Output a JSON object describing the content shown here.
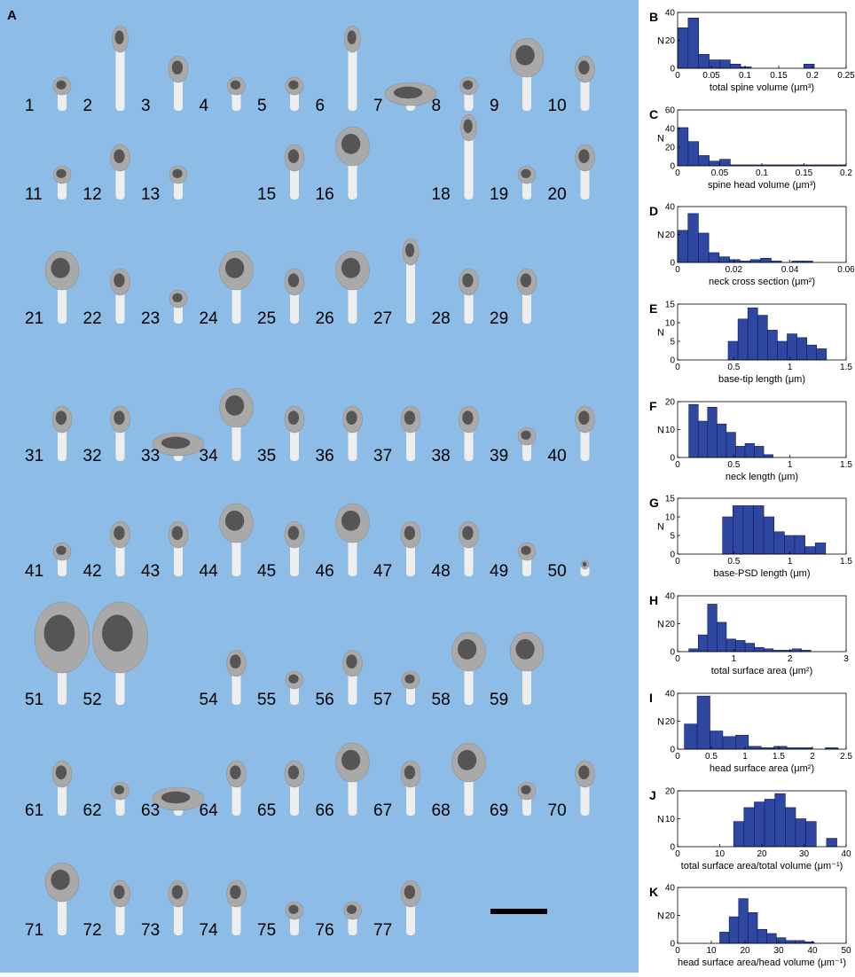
{
  "colors": {
    "panel_bg": "#8dbde6",
    "spine": "#a9a9a9",
    "neck": "#eeeeee",
    "psd": "#555555",
    "bar": "#2f47a0",
    "bar_edge": "#0b1a5e",
    "scale_bar": "#000000"
  },
  "panel_a": {
    "letter": "A",
    "spines": [
      {
        "label": "1",
        "kind": "small"
      },
      {
        "label": "2",
        "kind": "tall"
      },
      {
        "label": "3",
        "kind": "normal"
      },
      {
        "label": "4",
        "kind": "small"
      },
      {
        "label": "5",
        "kind": "small"
      },
      {
        "label": "6",
        "kind": "tall"
      },
      {
        "label": "7",
        "kind": "wide"
      },
      {
        "label": "8",
        "kind": "small"
      },
      {
        "label": "9",
        "kind": "big"
      },
      {
        "label": "10",
        "kind": "normal"
      },
      {
        "label": "11",
        "kind": "small"
      },
      {
        "label": "12",
        "kind": "normal"
      },
      {
        "label": "13",
        "kind": "small"
      },
      {
        "label": "",
        "kind": "none"
      },
      {
        "label": "15",
        "kind": "normal"
      },
      {
        "label": "16",
        "kind": "big"
      },
      {
        "label": "",
        "kind": "none"
      },
      {
        "label": "18",
        "kind": "tall"
      },
      {
        "label": "19",
        "kind": "small"
      },
      {
        "label": "20",
        "kind": "normal"
      },
      {
        "label": "21",
        "kind": "big"
      },
      {
        "label": "22",
        "kind": "normal"
      },
      {
        "label": "23",
        "kind": "small"
      },
      {
        "label": "24",
        "kind": "big"
      },
      {
        "label": "25",
        "kind": "normal"
      },
      {
        "label": "26",
        "kind": "big"
      },
      {
        "label": "27",
        "kind": "tall"
      },
      {
        "label": "28",
        "kind": "normal"
      },
      {
        "label": "29",
        "kind": "normal"
      },
      {
        "label": "",
        "kind": "none"
      },
      {
        "label": "31",
        "kind": "normal"
      },
      {
        "label": "32",
        "kind": "normal"
      },
      {
        "label": "33",
        "kind": "wide"
      },
      {
        "label": "34",
        "kind": "big"
      },
      {
        "label": "35",
        "kind": "normal"
      },
      {
        "label": "36",
        "kind": "normal"
      },
      {
        "label": "37",
        "kind": "normal"
      },
      {
        "label": "38",
        "kind": "normal"
      },
      {
        "label": "39",
        "kind": "small"
      },
      {
        "label": "40",
        "kind": "normal"
      },
      {
        "label": "41",
        "kind": "small"
      },
      {
        "label": "42",
        "kind": "normal"
      },
      {
        "label": "43",
        "kind": "normal"
      },
      {
        "label": "44",
        "kind": "big"
      },
      {
        "label": "45",
        "kind": "normal"
      },
      {
        "label": "46",
        "kind": "big"
      },
      {
        "label": "47",
        "kind": "normal"
      },
      {
        "label": "48",
        "kind": "normal"
      },
      {
        "label": "49",
        "kind": "small"
      },
      {
        "label": "50",
        "kind": "tiny"
      },
      {
        "label": "51",
        "kind": "huge"
      },
      {
        "label": "52",
        "kind": "huge"
      },
      {
        "label": "",
        "kind": "none"
      },
      {
        "label": "54",
        "kind": "normal"
      },
      {
        "label": "55",
        "kind": "small"
      },
      {
        "label": "56",
        "kind": "normal"
      },
      {
        "label": "57",
        "kind": "small"
      },
      {
        "label": "58",
        "kind": "big"
      },
      {
        "label": "59",
        "kind": "big"
      },
      {
        "label": "",
        "kind": "none"
      },
      {
        "label": "61",
        "kind": "normal"
      },
      {
        "label": "62",
        "kind": "small"
      },
      {
        "label": "63",
        "kind": "wide"
      },
      {
        "label": "64",
        "kind": "normal"
      },
      {
        "label": "65",
        "kind": "normal"
      },
      {
        "label": "66",
        "kind": "big"
      },
      {
        "label": "67",
        "kind": "normal"
      },
      {
        "label": "68",
        "kind": "big"
      },
      {
        "label": "69",
        "kind": "small"
      },
      {
        "label": "70",
        "kind": "normal"
      },
      {
        "label": "71",
        "kind": "big"
      },
      {
        "label": "72",
        "kind": "normal"
      },
      {
        "label": "73",
        "kind": "normal"
      },
      {
        "label": "74",
        "kind": "normal"
      },
      {
        "label": "75",
        "kind": "small"
      },
      {
        "label": "76",
        "kind": "small"
      },
      {
        "label": "77",
        "kind": "normal"
      },
      {
        "label": "",
        "kind": "none"
      },
      {
        "label": "",
        "kind": "none"
      },
      {
        "label": "",
        "kind": "none"
      }
    ]
  },
  "chart_data": [
    {
      "id": "B",
      "type": "bar",
      "xlabel": "total spine volume (μm³)",
      "ylabel": "N",
      "xlim": [
        0,
        0.25
      ],
      "ylim": [
        0,
        40
      ],
      "xticks": [
        "0",
        "0.05",
        "0.1",
        "0.15",
        "0.2",
        "0.25"
      ],
      "xtick_values": [
        0,
        0.05,
        0.1,
        0.15,
        0.2,
        0.25
      ],
      "yticks": [
        0,
        20,
        40
      ],
      "bin_start": 0,
      "bin_width": 0.0156,
      "values": [
        29,
        36,
        10,
        6,
        6,
        3,
        1,
        0,
        0,
        0,
        0,
        0,
        3,
        0,
        0,
        0
      ]
    },
    {
      "id": "C",
      "type": "bar",
      "xlabel": "spine head volume (μm³)",
      "ylabel": "N",
      "xlim": [
        0,
        0.2
      ],
      "ylim": [
        0,
        60
      ],
      "xticks": [
        "0",
        "0.05",
        "0.1",
        "0.15",
        "0.2"
      ],
      "xtick_values": [
        0,
        0.05,
        0.1,
        0.15,
        0.2
      ],
      "yticks": [
        0,
        20,
        40,
        60
      ],
      "bin_start": 0,
      "bin_width": 0.0125,
      "values": [
        41,
        26,
        11,
        5,
        7,
        1,
        1,
        1,
        1,
        1,
        1,
        1,
        1,
        1,
        1,
        1
      ]
    },
    {
      "id": "D",
      "type": "bar",
      "xlabel": "neck cross section (μm²)",
      "ylabel": "N",
      "xlim": [
        0,
        0.06
      ],
      "ylim": [
        0,
        40
      ],
      "xticks": [
        "0",
        "0.02",
        "0.04",
        "0.06"
      ],
      "xtick_values": [
        0,
        0.02,
        0.04,
        0.06
      ],
      "yticks": [
        0,
        20,
        40
      ],
      "bin_start": 0,
      "bin_width": 0.0037,
      "values": [
        23,
        35,
        21,
        7,
        4,
        2,
        1,
        2,
        3,
        1,
        0,
        1,
        1,
        0,
        0,
        0
      ]
    },
    {
      "id": "E",
      "type": "bar",
      "xlabel": "base-tip length (μm)",
      "ylabel": "N",
      "xlim": [
        0,
        1.5
      ],
      "ylim": [
        0,
        15
      ],
      "xticks": [
        "0",
        "0.5",
        "1",
        "1.5"
      ],
      "xtick_values": [
        0,
        0.5,
        1,
        1.5
      ],
      "yticks": [
        0,
        5,
        10,
        15
      ],
      "bin_start": 0.45,
      "bin_width": 0.0875,
      "values": [
        5,
        11,
        14,
        12,
        8,
        5,
        7,
        6,
        4,
        3
      ]
    },
    {
      "id": "F",
      "type": "bar",
      "xlabel": "neck length (μm)",
      "ylabel": "N",
      "xlim": [
        0,
        1.5
      ],
      "ylim": [
        0,
        20
      ],
      "xticks": [
        "0",
        "0.5",
        "1",
        "1.5"
      ],
      "xtick_values": [
        0,
        0.5,
        1,
        1.5
      ],
      "yticks": [
        0,
        10,
        20
      ],
      "bin_start": 0.1,
      "bin_width": 0.0833,
      "values": [
        19,
        13,
        18,
        12,
        9,
        4,
        5,
        4,
        1
      ]
    },
    {
      "id": "G",
      "type": "bar",
      "xlabel": "base-PSD length (μm)",
      "ylabel": "N",
      "xlim": [
        0,
        1.5
      ],
      "ylim": [
        0,
        15
      ],
      "xticks": [
        "0",
        "0.5",
        "1",
        "1.5"
      ],
      "xtick_values": [
        0,
        0.5,
        1,
        1.5
      ],
      "yticks": [
        0,
        5,
        10,
        15
      ],
      "bin_start": 0.4,
      "bin_width": 0.0917,
      "values": [
        10,
        13,
        13,
        13,
        10,
        6,
        5,
        5,
        2,
        3
      ]
    },
    {
      "id": "H",
      "type": "bar",
      "xlabel": "total surface area (μm²)",
      "ylabel": "N",
      "xlim": [
        0,
        3
      ],
      "ylim": [
        0,
        40
      ],
      "xticks": [
        "0",
        "1",
        "2",
        "3"
      ],
      "xtick_values": [
        0,
        1,
        2,
        3
      ],
      "yticks": [
        0,
        20,
        40
      ],
      "bin_start": 0.2,
      "bin_width": 0.167,
      "values": [
        2,
        12,
        34,
        21,
        9,
        8,
        6,
        3,
        2,
        1,
        1,
        2,
        1
      ]
    },
    {
      "id": "I",
      "type": "bar",
      "xlabel": "head surface area (μm²)",
      "ylabel": "N",
      "xlim": [
        0,
        2.5
      ],
      "ylim": [
        0,
        40
      ],
      "xticks": [
        "0",
        "0.5",
        "1",
        "1.5",
        "2",
        "2.5"
      ],
      "xtick_values": [
        0,
        0.5,
        1,
        1.5,
        2,
        2.5
      ],
      "yticks": [
        0,
        20,
        40
      ],
      "bin_start": 0.1,
      "bin_width": 0.19,
      "values": [
        18,
        38,
        13,
        9,
        10,
        2,
        1,
        2,
        1,
        1,
        0,
        1
      ]
    },
    {
      "id": "J",
      "type": "bar",
      "xlabel": "total surface area/total volume (μm⁻¹)",
      "ylabel": "N",
      "xlim": [
        0,
        40
      ],
      "ylim": [
        0,
        20
      ],
      "xticks": [
        "0",
        "10",
        "20",
        "30",
        "40"
      ],
      "xtick_values": [
        0,
        10,
        20,
        30,
        40
      ],
      "yticks": [
        0,
        10,
        20
      ],
      "bin_start": 13.3,
      "bin_width": 2.45,
      "values": [
        9,
        14,
        16,
        17,
        19,
        14,
        10,
        9,
        0,
        3
      ]
    },
    {
      "id": "K",
      "type": "bar",
      "xlabel": "head surface area/head volume (μm⁻¹)",
      "ylabel": "N",
      "xlim": [
        0,
        50
      ],
      "ylim": [
        0,
        40
      ],
      "xticks": [
        "0",
        "10",
        "20",
        "30",
        "40",
        "50"
      ],
      "xtick_values": [
        0,
        10,
        20,
        30,
        40,
        50
      ],
      "yticks": [
        0,
        20,
        40
      ],
      "bin_start": 12.5,
      "bin_width": 2.8,
      "values": [
        8,
        19,
        32,
        22,
        10,
        7,
        4,
        2,
        2,
        1
      ]
    }
  ]
}
